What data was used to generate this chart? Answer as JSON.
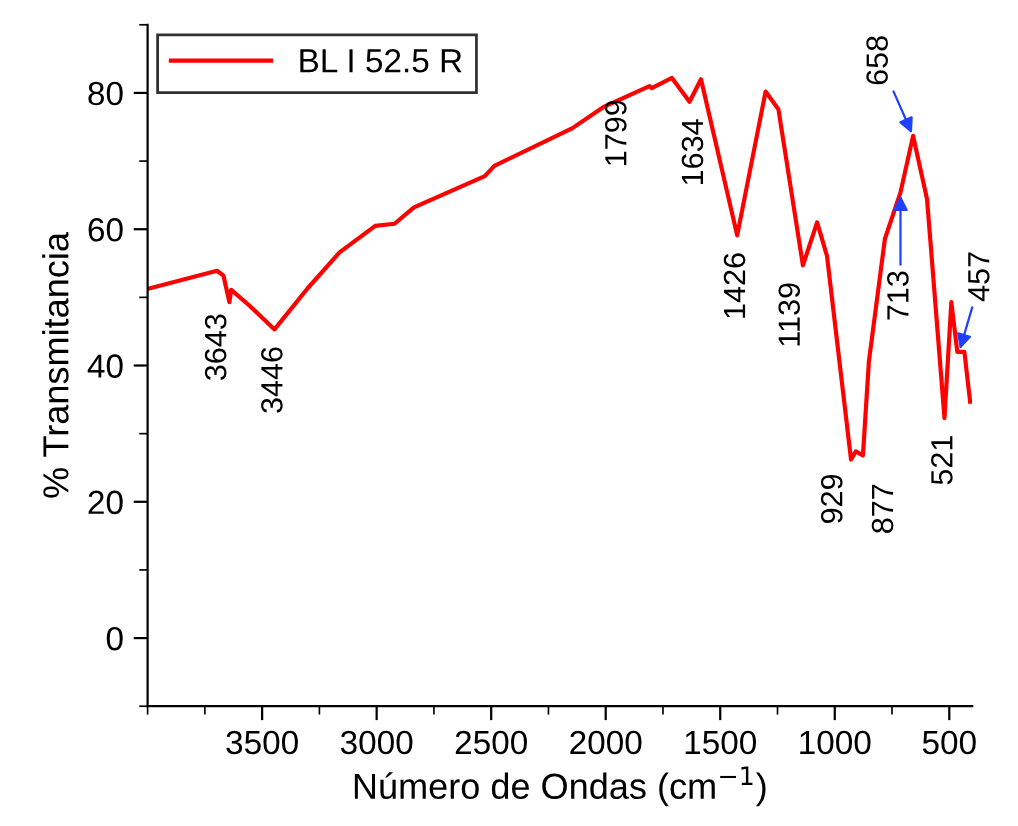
{
  "chart_data": {
    "type": "line",
    "xlabel": "Número de Ondas (cm$^{−1}$)",
    "ylabel": "% Transmitancia",
    "x": [
      3993,
      3697,
      3669,
      3643,
      3635,
      3556,
      3446,
      3302,
      3162,
      3006,
      2922,
      2837,
      2528,
      2486,
      2147,
      2006,
      1809,
      1799,
      1711,
      1634,
      1584,
      1426,
      1302,
      1246,
      1139,
      1077,
      1034,
      929,
      908,
      877,
      851,
      781,
      713,
      658,
      597,
      521,
      491,
      465,
      434,
      409
    ],
    "series": [
      {
        "name": "BL I 52.5 R",
        "color": "#ff0000",
        "values": [
          51.3,
          53.9,
          53.2,
          49.3,
          51.1,
          48.8,
          45.3,
          51.3,
          56.6,
          60.5,
          60.8,
          63.2,
          67.8,
          69.3,
          74.8,
          78.0,
          81.0,
          80.7,
          82.2,
          78.7,
          82.0,
          59.1,
          80.2,
          77.6,
          54.7,
          61.0,
          56.1,
          26.2,
          27.4,
          26.8,
          40.6,
          58.6,
          65.4,
          73.7,
          64.4,
          32.3,
          49.3,
          42.0,
          42.0,
          34.7
        ]
      }
    ],
    "annotations": [
      {
        "text": "3643",
        "x": 3643,
        "y": 49.3
      },
      {
        "text": "3446",
        "x": 3446,
        "y": 45.3
      },
      {
        "text": "1799",
        "x": 1799,
        "y": 80.7
      },
      {
        "text": "1634",
        "x": 1634,
        "y": 78.7
      },
      {
        "text": "1426",
        "x": 1426,
        "y": 59.1
      },
      {
        "text": "1139",
        "x": 1139,
        "y": 54.7
      },
      {
        "text": "929",
        "x": 929,
        "y": 26.2
      },
      {
        "text": "877",
        "x": 877,
        "y": 26.8
      },
      {
        "text": "713",
        "x": 713,
        "y": 65.4
      },
      {
        "text": "658",
        "x": 658,
        "y": 73.7
      },
      {
        "text": "521",
        "x": 521,
        "y": 32.3
      },
      {
        "text": "457",
        "x": 457,
        "y": 42.0
      }
    ],
    "xlim": [
      4000,
      400
    ],
    "xticks": [
      3500,
      3000,
      2500,
      2000,
      1500,
      1000,
      500
    ],
    "ylim": [
      -10,
      90
    ],
    "yticks": [
      0,
      20,
      40,
      60,
      80
    ],
    "legend": "top left",
    "grid": false,
    "line_style": "solid",
    "marker": "none"
  }
}
